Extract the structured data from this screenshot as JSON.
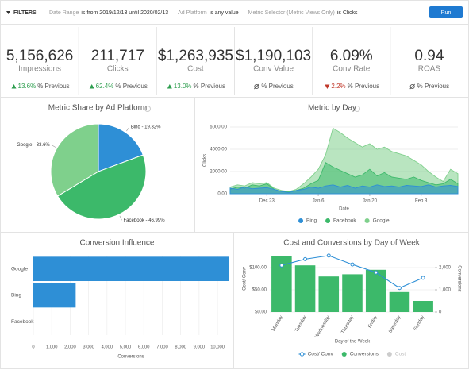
{
  "filters": {
    "toggle": "FILTERS",
    "items": [
      {
        "field": "Date Range",
        "condition": "is from 2019/12/13 until 2020/02/13"
      },
      {
        "field": "Ad Platform",
        "condition": "is any value"
      },
      {
        "field": "Metric Selector (Metric Views Only)",
        "condition": "is Clicks"
      }
    ],
    "button": "Run"
  },
  "kpis": [
    {
      "value": "5,156,626",
      "label": "Impressions",
      "change": "13.6%",
      "trend": "up",
      "suffix": "% Previous"
    },
    {
      "value": "211,717",
      "label": "Clicks",
      "change": "62.4%",
      "trend": "up",
      "suffix": "% Previous"
    },
    {
      "value": "$1,263,935",
      "label": "Cost",
      "change": "13.0%",
      "trend": "up",
      "suffix": "% Previous"
    },
    {
      "value": "$1,190,103",
      "label": "Conv Value",
      "trend": "none",
      "suffix": "% Previous"
    },
    {
      "value": "6.09%",
      "label": "Conv Rate",
      "change": "2.2%",
      "trend": "down",
      "suffix": "% Previous"
    },
    {
      "value": "0.94",
      "label": "ROAS",
      "trend": "none",
      "suffix": "% Previous"
    }
  ],
  "chart_data": [
    {
      "type": "pie",
      "title": "Metric Share by Ad Platform",
      "values": [
        19.32,
        46.99,
        33.6
      ],
      "value_labels": [
        "Bing - 19.32%",
        "Facebook - 46.99%",
        "Google - 33.6%"
      ],
      "colors": [
        "#2e8fd6",
        "#3cb96a",
        "#7fd08c"
      ]
    },
    {
      "type": "area",
      "title": "Metric by Day",
      "x_label": "Date",
      "y_label": "Clicks",
      "x": [
        "Dec 13",
        "Dec 15",
        "Dec 17",
        "Dec 19",
        "Dec 21",
        "Dec 23",
        "Dec 25",
        "Dec 27",
        "Dec 29",
        "Dec 31",
        "Jan 2",
        "Jan 4",
        "Jan 6",
        "Jan 8",
        "Jan 10",
        "Jan 12",
        "Jan 14",
        "Jan 16",
        "Jan 18",
        "Jan 20",
        "Jan 22",
        "Jan 24",
        "Jan 26",
        "Jan 28",
        "Jan 30",
        "Feb 1",
        "Feb 3",
        "Feb 5",
        "Feb 7",
        "Feb 9",
        "Feb 11",
        "Feb 13"
      ],
      "xticks": [
        "Dec 23",
        "Jan 6",
        "Jan 20",
        "Feb 3"
      ],
      "ylim": [
        0,
        6000
      ],
      "yticks": [
        {
          "value": 0,
          "label": "0.00"
        },
        {
          "value": 2000,
          "label": "2000.00"
        },
        {
          "value": 4000,
          "label": "4000.00"
        },
        {
          "value": 6000,
          "label": "6000.00"
        }
      ],
      "grid": true,
      "series": [
        {
          "name": "Bing",
          "color": "#2e8fd6",
          "values": [
            500,
            400,
            600,
            450,
            500,
            550,
            400,
            200,
            100,
            300,
            400,
            600,
            500,
            700,
            800,
            600,
            750,
            500,
            700,
            600,
            800,
            650,
            700,
            600,
            750,
            700,
            650,
            800,
            600,
            700,
            750,
            650
          ]
        },
        {
          "name": "Facebook",
          "color": "#3cb96a",
          "values": [
            400,
            600,
            500,
            800,
            700,
            900,
            400,
            200,
            200,
            300,
            500,
            900,
            1200,
            2800,
            2400,
            2100,
            1800,
            1500,
            1700,
            2200,
            1600,
            1900,
            1500,
            1400,
            1300,
            1500,
            1200,
            1000,
            800,
            900,
            1300,
            900
          ]
        },
        {
          "name": "Google",
          "color": "#7fd08c",
          "values": [
            600,
            800,
            700,
            1000,
            900,
            1000,
            500,
            300,
            200,
            400,
            900,
            1500,
            2200,
            3500,
            5900,
            5500,
            5000,
            4600,
            4200,
            4500,
            4000,
            4200,
            3800,
            3600,
            3400,
            3000,
            2600,
            2000,
            1500,
            1100,
            2200,
            1800
          ]
        }
      ]
    },
    {
      "type": "bar",
      "orientation": "horizontal",
      "title": "Conversion Influence",
      "x_label": "Conversions",
      "categories": [
        "Google",
        "Bing",
        "Facebook"
      ],
      "values": [
        10600,
        2300,
        0
      ],
      "color": "#2e8fd6",
      "xlim": [
        0,
        10600
      ],
      "xticks": [
        0,
        {
          "value": 1000,
          "label": "1,000"
        },
        {
          "value": 2000,
          "label": "2,000"
        },
        {
          "value": 3000,
          "label": "3,000"
        },
        {
          "value": 4000,
          "label": "4,000"
        },
        {
          "value": 5000,
          "label": "5,000"
        },
        {
          "value": 6000,
          "label": "6,000"
        },
        {
          "value": 7000,
          "label": "7,000"
        },
        {
          "value": 8000,
          "label": "8,000"
        },
        {
          "value": 9000,
          "label": "9,000"
        },
        {
          "value": 10000,
          "label": "10,000"
        }
      ],
      "grid": true
    },
    {
      "type": "combo",
      "title": "Cost and Conversions by Day of Week",
      "x_label": "Day of the Week",
      "y_label": "Cost/ Conv",
      "y2_label": "Conversions",
      "categories": [
        "Monday",
        "Tuesday",
        "Wednesday",
        "Thursday",
        "Friday",
        "Saturday",
        "Sunday"
      ],
      "ylim": [
        0,
        150
      ],
      "yticks": [
        {
          "value": 0,
          "label": "$0.00"
        },
        {
          "value": 50,
          "label": "$50.00"
        },
        {
          "value": 100,
          "label": "$100.00"
        }
      ],
      "y2lim": [
        0,
        3000
      ],
      "y2ticks": [
        0,
        {
          "value": 1000,
          "label": "1,000"
        },
        {
          "value": 2000,
          "label": "2,000"
        }
      ],
      "series": [
        {
          "name": "Cost/ Conv",
          "kind": "line",
          "color": "#2e8fd6",
          "values": [
            105,
            119,
            127,
            107,
            89,
            54,
            77
          ]
        },
        {
          "name": "Conversions",
          "kind": "bar",
          "axis": "y2",
          "color": "#3cb96a",
          "values": [
            2500,
            2100,
            1600,
            1700,
            1900,
            900,
            500
          ]
        },
        {
          "name": "Cost",
          "kind": "hidden",
          "color": "#cccccc",
          "visible": false
        }
      ]
    }
  ]
}
